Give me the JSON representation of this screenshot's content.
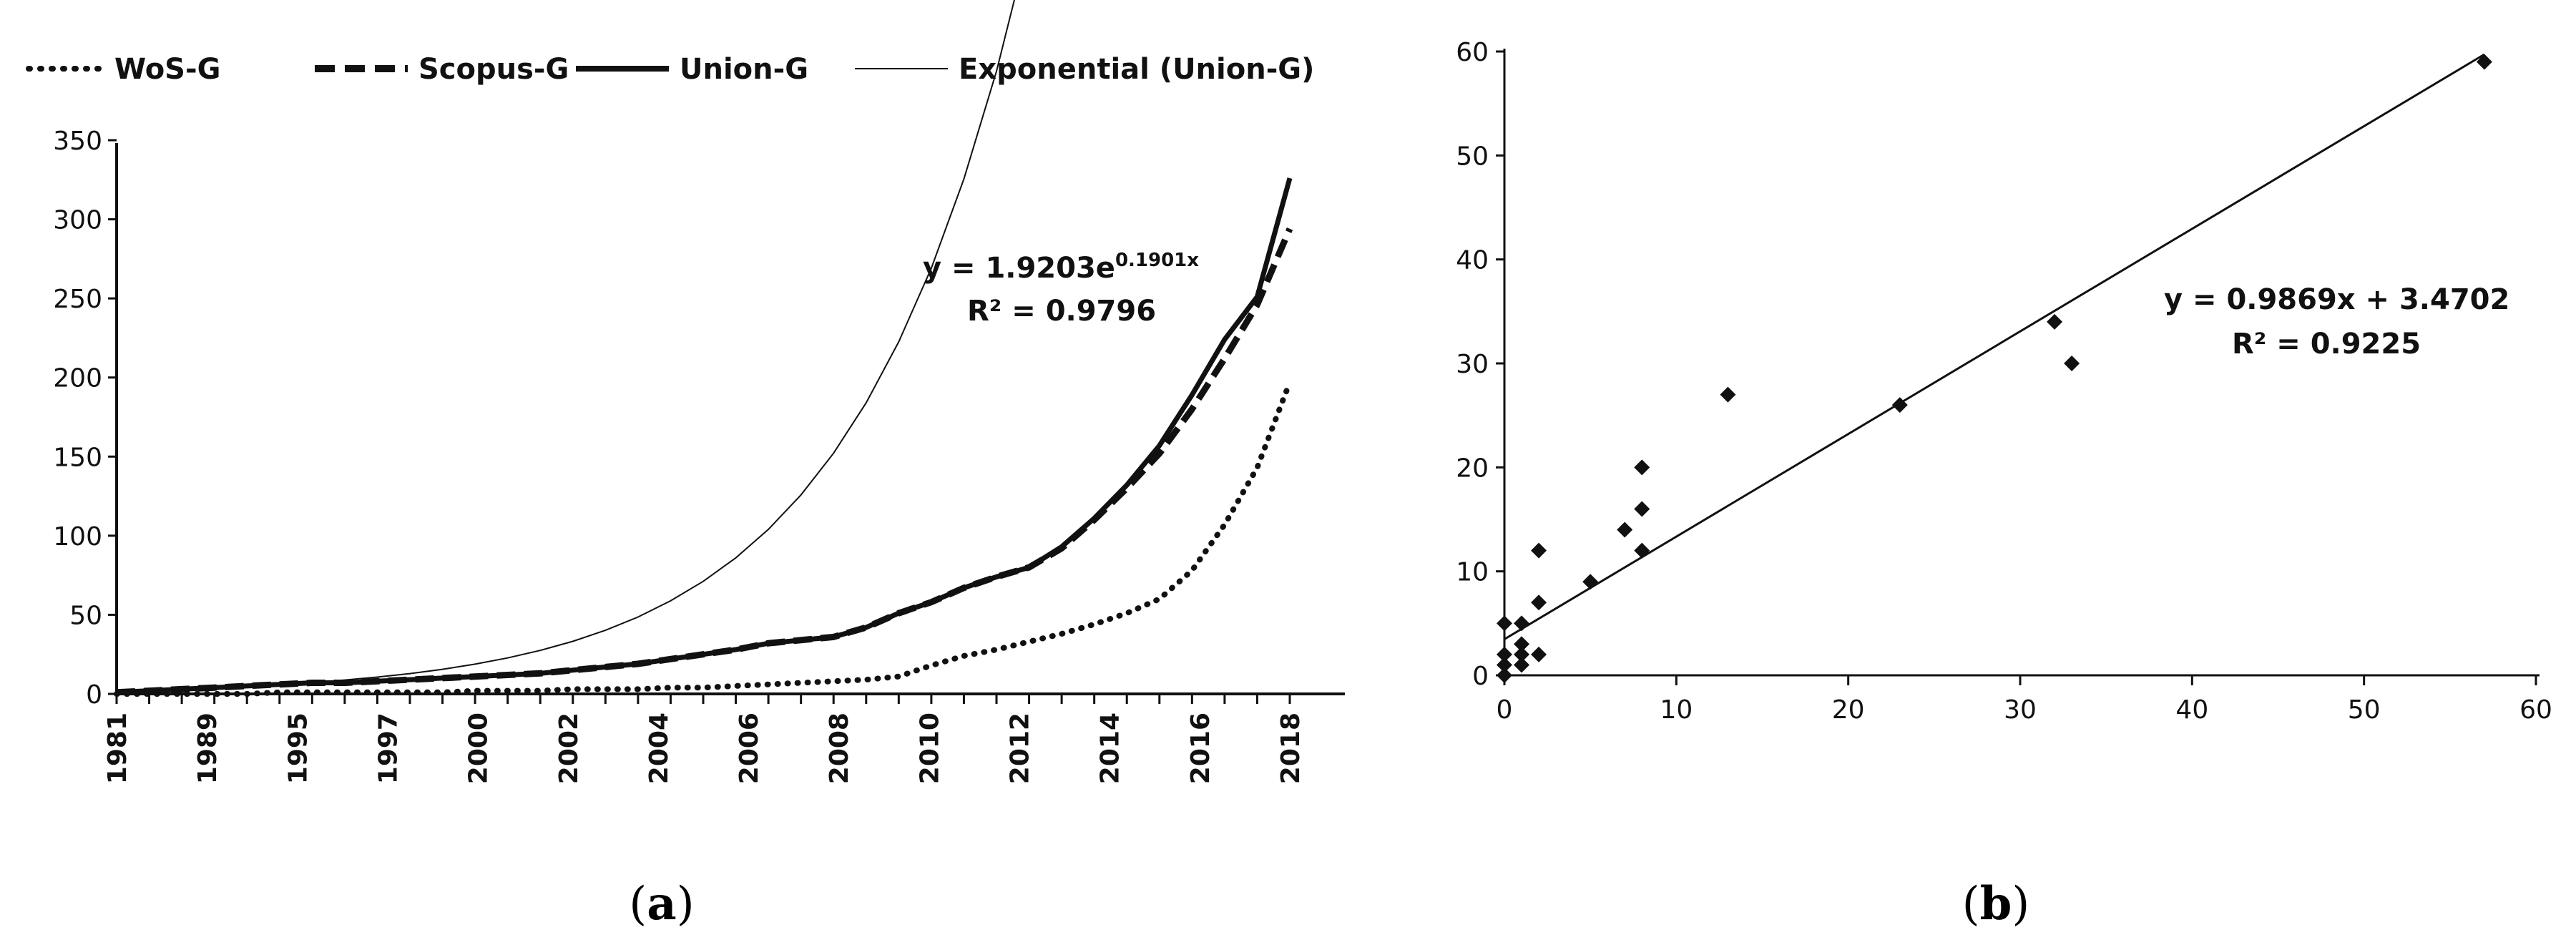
{
  "chart_data": [
    {
      "id": "a",
      "type": "line",
      "caption_label": "a",
      "legend": [
        "WoS-G",
        "Scopus-G",
        "Union-G",
        "Exponential (Union-G)"
      ],
      "categories": [
        "1981",
        "1989",
        "1995",
        "1997",
        "2000",
        "2002",
        "2004",
        "2006",
        "2008",
        "2010",
        "2012",
        "2014",
        "2016",
        "2018"
      ],
      "x": [
        0,
        1,
        2,
        3,
        4,
        5,
        6,
        7,
        8,
        9,
        10,
        11,
        12,
        13,
        14,
        15,
        16,
        17,
        18,
        19,
        20,
        21,
        22,
        23,
        24,
        25,
        26,
        27,
        28,
        29,
        30,
        31,
        32,
        33,
        34,
        35,
        36
      ],
      "series": [
        {
          "name": "WoS-G",
          "style": "dotted",
          "values": [
            0,
            0,
            0,
            0,
            0,
            1,
            1,
            1,
            1,
            1,
            1,
            2,
            2,
            2,
            3,
            3,
            3,
            4,
            4,
            5,
            6,
            7,
            8,
            9,
            11,
            18,
            24,
            28,
            33,
            38,
            44,
            51,
            60,
            78,
            107,
            143,
            197
          ]
        },
        {
          "name": "Scopus-G",
          "style": "dashed",
          "values": [
            1,
            2,
            3,
            4,
            5,
            6,
            7,
            7,
            8,
            9,
            10,
            11,
            12,
            13,
            15,
            17,
            19,
            22,
            25,
            28,
            32,
            34,
            36,
            42,
            51,
            58,
            67,
            74,
            80,
            92,
            110,
            130,
            152,
            180,
            212,
            246,
            294
          ]
        },
        {
          "name": "Union-G",
          "style": "solid-thick",
          "values": [
            1,
            2,
            3,
            4,
            5,
            6,
            7,
            7,
            8,
            9,
            10,
            11,
            12,
            13,
            15,
            17,
            19,
            22,
            25,
            28,
            32,
            34,
            36,
            42,
            51,
            58,
            67,
            74,
            80,
            93,
            111,
            132,
            157,
            189,
            224,
            251,
            326
          ]
        },
        {
          "name": "Exponential (Union-G)",
          "style": "solid-thin",
          "fit": {
            "a": 1.9203,
            "b": 0.1901
          }
        }
      ],
      "ylim": [
        0,
        350
      ],
      "yticks": [
        0,
        50,
        100,
        150,
        200,
        250,
        300,
        350
      ],
      "equation": {
        "prefix": "y = 1.9203e",
        "exponent": "0.1901x",
        "r2": "R² = 0.9796"
      }
    },
    {
      "id": "b",
      "type": "scatter",
      "caption_label": "b",
      "points": [
        [
          0,
          0
        ],
        [
          0,
          1
        ],
        [
          0,
          2
        ],
        [
          0,
          5
        ],
        [
          1,
          1
        ],
        [
          1,
          2
        ],
        [
          1,
          3
        ],
        [
          1,
          5
        ],
        [
          2,
          2
        ],
        [
          2,
          7
        ],
        [
          2,
          12
        ],
        [
          5,
          9
        ],
        [
          7,
          14
        ],
        [
          8,
          12
        ],
        [
          8,
          16
        ],
        [
          8,
          20
        ],
        [
          13,
          27
        ],
        [
          23,
          26
        ],
        [
          32,
          34
        ],
        [
          33,
          30
        ],
        [
          57,
          59
        ]
      ],
      "trendline": {
        "slope": 0.9869,
        "intercept": 3.4702
      },
      "xlim": [
        0,
        60
      ],
      "ylim": [
        0,
        60
      ],
      "xticks": [
        0,
        10,
        20,
        30,
        40,
        50,
        60
      ],
      "yticks": [
        0,
        10,
        20,
        30,
        40,
        50,
        60
      ],
      "equation": {
        "line1": "y = 0.9869x + 3.4702",
        "r2": "R² = 0.9225"
      }
    }
  ]
}
